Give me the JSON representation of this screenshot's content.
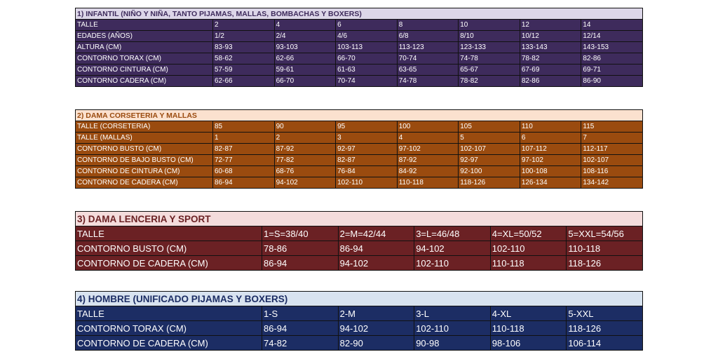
{
  "colors": {
    "t1_header_bg": "#dcd6e8",
    "t1_body": "#3e2b5c",
    "t2_header_bg": "#fbe1cf",
    "t2_body": "#9a4b0f",
    "t3_header_bg": "#f4dcdc",
    "t3_body": "#6b2124",
    "t4_header_bg": "#d8e3f0",
    "t4_body": "#1c2d64"
  },
  "tables": [
    {
      "title": "1) INFANTIL (NIÑO Y NIÑA, TANTO PIJAMAS, MALLAS, BOMBACHAS Y BOXERS)",
      "rows": [
        [
          "TALLE",
          "2",
          "4",
          "6",
          "8",
          "10",
          "12",
          "14"
        ],
        [
          "EDADES (AÑOS)",
          "1/2",
          "2/4",
          "4/6",
          "6/8",
          "8/10",
          "10/12",
          "12/14"
        ],
        [
          "ALTURA (CM)",
          "83-93",
          "93-103",
          "103-113",
          "113-123",
          "123-133",
          "133-143",
          "143-153"
        ],
        [
          "CONTORNO TORAX (CM)",
          "58-62",
          "62-66",
          "66-70",
          "70-74",
          "74-78",
          "78-82",
          "82-86"
        ],
        [
          "CONTORNO CINTURA (CM)",
          "57-59",
          "59-61",
          "61-63",
          "63-65",
          "65-67",
          "67-69",
          "69-71"
        ],
        [
          "CONTORNO CADERA (CM)",
          "62-66",
          "66-70",
          "70-74",
          "74-78",
          "78-82",
          "82-86",
          "86-90"
        ]
      ]
    },
    {
      "title": "2) DAMA CORSETERIA Y MALLAS",
      "rows": [
        [
          "TALLE (CORSETERIA)",
          "85",
          "90",
          "95",
          "100",
          "105",
          "110",
          "115"
        ],
        [
          "TALLE (MALLAS)",
          "1",
          "2",
          "3",
          "4",
          "5",
          "6",
          "7"
        ],
        [
          "CONTORNO BUSTO (CM)",
          "82-87",
          "87-92",
          "92-97",
          "97-102",
          "102-107",
          "107-112",
          "112-117"
        ],
        [
          "CONTORNO DE BAJO BUSTO (CM)",
          "72-77",
          "77-82",
          "82-87",
          "87-92",
          "92-97",
          "97-102",
          "102-107"
        ],
        [
          "CONTORNO DE CINTURA (CM)",
          "60-68",
          "68-76",
          "76-84",
          "84-92",
          "92-100",
          "100-108",
          "108-116"
        ],
        [
          "CONTORNO DE CADERA (CM)",
          "86-94",
          "94-102",
          "102-110",
          "110-118",
          "118-126",
          "126-134",
          "134-142"
        ]
      ]
    },
    {
      "title": "3) DAMA LENCERIA Y SPORT",
      "rows": [
        [
          "TALLE",
          "1=S=38/40",
          "2=M=42/44",
          "3=L=46/48",
          "4=XL=50/52",
          "5=XXL=54/56"
        ],
        [
          "CONTORNO BUSTO (CM)",
          "78-86",
          "86-94",
          "94-102",
          "102-110",
          "110-118"
        ],
        [
          "CONTORNO DE CADERA (CM)",
          "86-94",
          "94-102",
          "102-110",
          "110-118",
          "118-126"
        ]
      ]
    },
    {
      "title": "4) HOMBRE (UNIFICADO PIJAMAS Y BOXERS)",
      "rows": [
        [
          "TALLE",
          "1-S",
          "2-M",
          "3-L",
          "4-XL",
          "5-XXL"
        ],
        [
          "CONTORNO TORAX (CM)",
          "86-94",
          "94-102",
          "102-110",
          "110-118",
          "118-126"
        ],
        [
          "CONTORNO DE CADERA (CM)",
          "74-82",
          "82-90",
          "90-98",
          "98-106",
          "106-114"
        ]
      ]
    }
  ]
}
